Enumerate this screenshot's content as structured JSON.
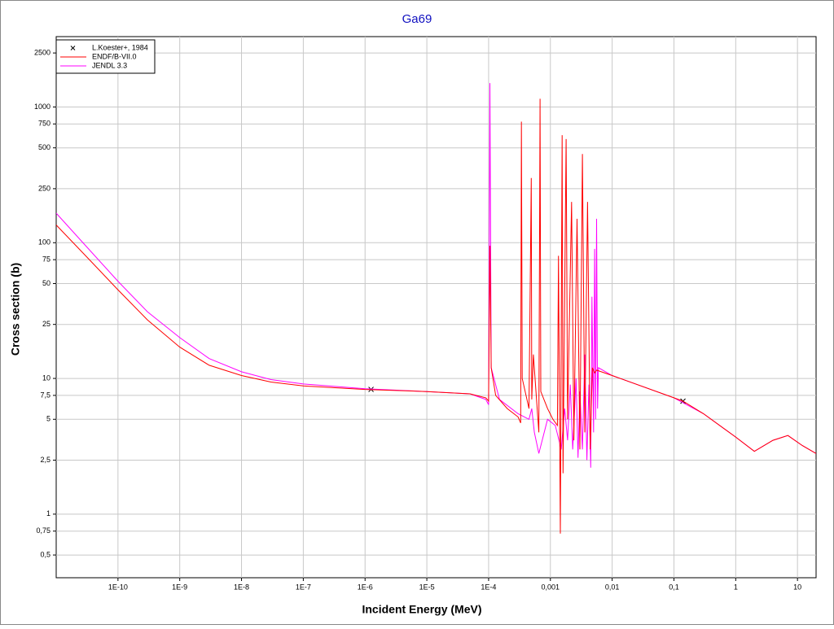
{
  "chart_data": {
    "type": "line",
    "title": "Ga69",
    "x_label": "Incident Energy (MeV)",
    "y_label": "Cross section (b)",
    "x_log": true,
    "y_log": true,
    "grid": true,
    "legend": "upper left",
    "xlim": [
      1e-11,
      20
    ],
    "ylim": [
      0.34,
      3300
    ],
    "xticks": [
      {
        "value": 1e-10,
        "label": "1E-10"
      },
      {
        "value": 1e-09,
        "label": "1E-9"
      },
      {
        "value": 1e-08,
        "label": "1E-8"
      },
      {
        "value": 1e-07,
        "label": "1E-7"
      },
      {
        "value": 1e-06,
        "label": "1E-6"
      },
      {
        "value": 1e-05,
        "label": "1E-5"
      },
      {
        "value": 0.0001,
        "label": "1E-4"
      },
      {
        "value": 0.001,
        "label": "0,001"
      },
      {
        "value": 0.01,
        "label": "0,01"
      },
      {
        "value": 0.1,
        "label": "0,1"
      },
      1,
      10
    ],
    "yticks": [
      2500,
      1000,
      750,
      500,
      250,
      100,
      75,
      50,
      25,
      10,
      {
        "value": 7.5,
        "label": "7,5"
      },
      5,
      {
        "value": 2.5,
        "label": "2,5"
      },
      1,
      {
        "value": 0.75,
        "label": "0,75"
      },
      {
        "value": 0.5,
        "label": "0,5"
      }
    ],
    "series": [
      {
        "name": "L.Koester+, 1984",
        "color": "#000000",
        "mode": "markers",
        "x": [
          1.25e-06,
          0.14
        ],
        "values": [
          8.3,
          6.8
        ]
      },
      {
        "name": "JENDL 3.3",
        "color": "#ff00ff",
        "mode": "line",
        "x": [
          1e-11,
          3e-11,
          1e-10,
          3e-10,
          1e-09,
          3e-09,
          1e-08,
          3e-08,
          1e-07,
          1e-06,
          1e-05,
          5e-05,
          9e-05,
          0.0001,
          0.000105,
          0.00011,
          0.00015,
          0.0003,
          0.00045,
          0.0005,
          0.00055,
          0.00065,
          0.0009,
          0.0012,
          0.0015,
          0.0017,
          0.0019,
          0.0021,
          0.0023,
          0.0026,
          0.0028,
          0.003,
          0.0033,
          0.0036,
          0.0039,
          0.0042,
          0.0045,
          0.0047,
          0.005,
          0.0052,
          0.0054,
          0.0056,
          0.0058,
          0.006,
          0.01,
          0.1,
          0.3,
          1,
          2,
          4,
          7,
          12,
          20
        ],
        "values": [
          165,
          95,
          52,
          31,
          20,
          14,
          11.2,
          9.8,
          9.1,
          8.4,
          8.0,
          7.7,
          7.0,
          6.4,
          1500,
          12,
          7,
          5.5,
          5,
          6,
          4,
          2.8,
          5,
          4.5,
          3,
          6,
          3.5,
          9,
          3,
          10,
          2.6,
          8,
          3,
          15,
          2.5,
          9,
          2.2,
          40,
          4,
          90,
          5,
          150,
          6,
          12,
          10.5,
          7.2,
          5.5,
          3.7,
          2.9,
          3.5,
          3.8,
          3.2,
          2.8
        ]
      },
      {
        "name": "ENDF/B-VII.0",
        "color": "#ff0000",
        "mode": "line",
        "x": [
          1e-11,
          3e-11,
          1e-10,
          3e-10,
          1e-09,
          3e-09,
          1e-08,
          3e-08,
          1e-07,
          1e-06,
          1e-05,
          5e-05,
          9e-05,
          0.0001,
          0.000105,
          0.00011,
          0.00013,
          0.0002,
          0.0003,
          0.00033,
          0.00034,
          0.00035,
          0.00045,
          0.00049,
          0.0005,
          0.00053,
          0.00065,
          0.00068,
          0.0007,
          0.0009,
          0.0011,
          0.0013,
          0.00135,
          0.00145,
          0.00155,
          0.0016,
          0.0018,
          0.0019,
          0.0022,
          0.0024,
          0.0027,
          0.003,
          0.0033,
          0.0036,
          0.004,
          0.0044,
          0.0048,
          0.0052,
          0.0056,
          0.01,
          0.1,
          0.14,
          0.3,
          1,
          2,
          4,
          7,
          12,
          20
        ],
        "values": [
          135,
          80,
          45,
          27,
          17,
          12.5,
          10.5,
          9.4,
          8.8,
          8.3,
          8.0,
          7.7,
          7.2,
          6.8,
          95,
          12,
          7.5,
          6.0,
          5.2,
          4.7,
          780,
          10,
          6,
          300,
          7,
          15,
          4,
          1150,
          8,
          6,
          5,
          4.5,
          80,
          0.72,
          620,
          2,
          580,
          5,
          200,
          3.5,
          150,
          3,
          450,
          4,
          200,
          3,
          12,
          11,
          11.5,
          10.5,
          7.2,
          6.8,
          5.5,
          3.7,
          2.9,
          3.5,
          3.8,
          3.2,
          2.8
        ]
      }
    ]
  }
}
